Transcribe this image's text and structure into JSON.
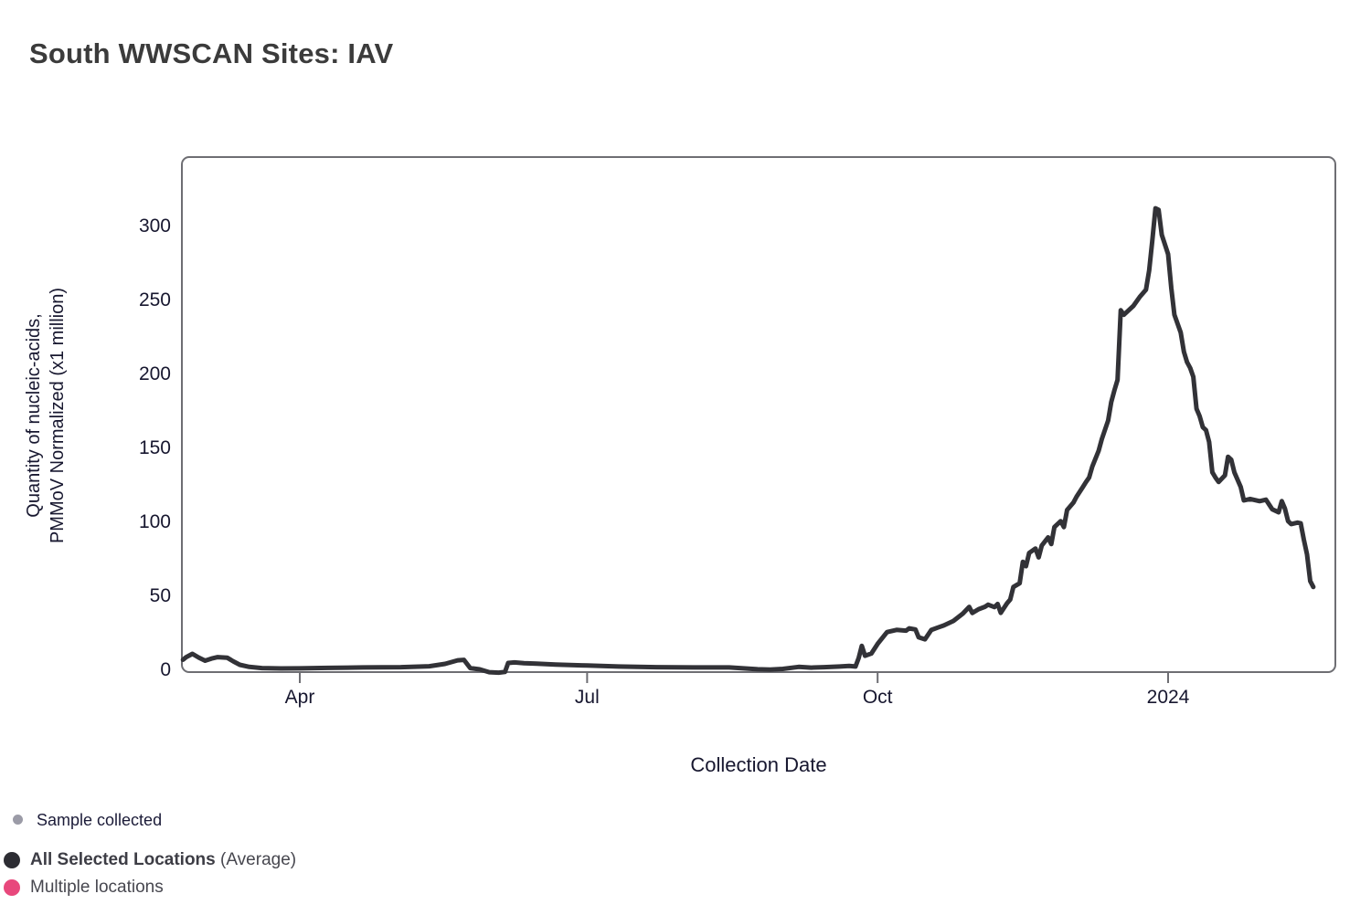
{
  "title": "South WWSCAN Sites: IAV",
  "legend": {
    "sample_collected": "Sample collected",
    "all_selected_bold": "All Selected Locations",
    "all_selected_suffix": " (Average)",
    "multiple_locations": "Multiple locations"
  },
  "colors": {
    "line": "#323237",
    "frame": "#6e6e73",
    "tick_mark": "#6e6e73",
    "title_text": "#3b3b3b",
    "axis_text": "#17172f",
    "legend_gray_dot": "#9b9ba7",
    "legend_black_dot": "#2d2d33",
    "legend_pink_dot": "#e8487c"
  },
  "chart_data": {
    "type": "line",
    "title": "South WWSCAN Sites: IAV",
    "xlabel": "Collection Date",
    "ylabel": "Quantity of nucleic-acids, PMMoV Normalized (x1 million)",
    "ylabel_lines": [
      "Quantity of nucleic-acids,",
      "PMMoV Normalized (x1 million)"
    ],
    "ylim": [
      0,
      347
    ],
    "yticks": [
      0,
      50,
      100,
      150,
      200,
      250,
      300
    ],
    "grid": false,
    "legend_position": "bottom-left",
    "xticks": [
      {
        "label": "Apr",
        "date": "2023-04-01"
      },
      {
        "label": "Jul",
        "date": "2023-07-01"
      },
      {
        "label": "Oct",
        "date": "2023-10-01"
      },
      {
        "label": "2024",
        "date": "2024-01-01"
      }
    ],
    "x": [
      "2023-02-23",
      "2023-02-24",
      "2023-02-26",
      "2023-02-28",
      "2023-03-02",
      "2023-03-04",
      "2023-03-06",
      "2023-03-09",
      "2023-03-11",
      "2023-03-13",
      "2023-03-16",
      "2023-03-20",
      "2023-03-26",
      "2023-04-01",
      "2023-04-10",
      "2023-04-21",
      "2023-05-03",
      "2023-05-12",
      "2023-05-17",
      "2023-05-21",
      "2023-05-23",
      "2023-05-25",
      "2023-05-28",
      "2023-05-31",
      "2023-06-03",
      "2023-06-05",
      "2023-06-06",
      "2023-06-08",
      "2023-06-11",
      "2023-06-15",
      "2023-06-21",
      "2023-07-01",
      "2023-07-11",
      "2023-07-23",
      "2023-08-04",
      "2023-08-15",
      "2023-08-24",
      "2023-08-28",
      "2023-09-01",
      "2023-09-06",
      "2023-09-10",
      "2023-09-14",
      "2023-09-19",
      "2023-09-22",
      "2023-09-24",
      "2023-09-25",
      "2023-09-26",
      "2023-09-27",
      "2023-09-29",
      "2023-10-01",
      "2023-10-04",
      "2023-10-07",
      "2023-10-10",
      "2023-10-11",
      "2023-10-13",
      "2023-10-14",
      "2023-10-16",
      "2023-10-18",
      "2023-10-20",
      "2023-10-22",
      "2023-10-25",
      "2023-10-28",
      "2023-10-30",
      "2023-10-31",
      "2023-11-02",
      "2023-11-04",
      "2023-11-05",
      "2023-11-07",
      "2023-11-08",
      "2023-11-09",
      "2023-11-11",
      "2023-11-12",
      "2023-11-13",
      "2023-11-15",
      "2023-11-16",
      "2023-11-17",
      "2023-11-18",
      "2023-11-20",
      "2023-11-21",
      "2023-11-22",
      "2023-11-24",
      "2023-11-25",
      "2023-11-26",
      "2023-11-28",
      "2023-11-29",
      "2023-11-30",
      "2023-12-02",
      "2023-12-03",
      "2023-12-05",
      "2023-12-06",
      "2023-12-07",
      "2023-12-08",
      "2023-12-10",
      "2023-12-11",
      "2023-12-13",
      "2023-12-14",
      "2023-12-15",
      "2023-12-16",
      "2023-12-17",
      "2023-12-18",
      "2023-12-21",
      "2023-12-23",
      "2023-12-25",
      "2023-12-26",
      "2023-12-27",
      "2023-12-28",
      "2023-12-29",
      "2023-12-30",
      "2024-01-01",
      "2024-01-02",
      "2024-01-03",
      "2024-01-05",
      "2024-01-06",
      "2024-01-07",
      "2024-01-08",
      "2024-01-09",
      "2024-01-10",
      "2024-01-11",
      "2024-01-12",
      "2024-01-13",
      "2024-01-14",
      "2024-01-15",
      "2024-01-16",
      "2024-01-17",
      "2024-01-19",
      "2024-01-20",
      "2024-01-21",
      "2024-01-22",
      "2024-01-24",
      "2024-01-25",
      "2024-01-27",
      "2024-01-30",
      "2024-02-01",
      "2024-02-03",
      "2024-02-05",
      "2024-02-06",
      "2024-02-07",
      "2024-02-08",
      "2024-02-09",
      "2024-02-11",
      "2024-02-12",
      "2024-02-13",
      "2024-02-14",
      "2024-02-15",
      "2024-02-16"
    ],
    "series": [
      {
        "name": "All Selected Locations (Average)",
        "values": [
          6.8,
          8.5,
          10.8,
          8.3,
          6.2,
          7.6,
          8.6,
          8.2,
          5.6,
          3.4,
          2.0,
          1.2,
          0.9,
          1.0,
          1.3,
          1.6,
          1.8,
          2.4,
          4.0,
          6.4,
          6.7,
          1.2,
          0.3,
          -1.6,
          -1.9,
          -1.4,
          4.6,
          5.0,
          4.5,
          4.2,
          3.6,
          2.9,
          2.2,
          1.8,
          1.6,
          1.6,
          0.4,
          0.2,
          0.6,
          2.0,
          1.5,
          1.8,
          2.2,
          2.6,
          2.2,
          8.0,
          16.2,
          9.5,
          11.0,
          17.5,
          25.5,
          27.0,
          26.5,
          28.0,
          27.3,
          22.0,
          20.6,
          26.9,
          28.5,
          30.0,
          33.0,
          38.0,
          42.5,
          38.4,
          41.0,
          42.6,
          44.0,
          42.4,
          44.5,
          38.5,
          45.0,
          47.5,
          56.0,
          58.5,
          73.0,
          70.0,
          79.0,
          82.0,
          76.0,
          84.0,
          89.5,
          85.0,
          96.5,
          100.5,
          96.5,
          108.0,
          113.0,
          117.0,
          123.5,
          127.0,
          130.0,
          137.5,
          148.0,
          156.0,
          168.5,
          181.0,
          189.0,
          196.0,
          243.0,
          240.0,
          246.0,
          252.0,
          257.0,
          270.0,
          290.0,
          312.0,
          311.0,
          294.0,
          281.0,
          258.0,
          240.0,
          228.0,
          215.0,
          208.0,
          204.0,
          198.0,
          176.5,
          171.5,
          164.0,
          162.0,
          154.0,
          133.5,
          130.0,
          127.0,
          131.5,
          144.0,
          142.0,
          133.5,
          123.5,
          114.5,
          115.5,
          114.0,
          115.0,
          108.5,
          106.5,
          114.0,
          109.0,
          100.5,
          98.5,
          99.5,
          99.0,
          88.0,
          78.0,
          60.0,
          56.0
        ]
      }
    ]
  }
}
